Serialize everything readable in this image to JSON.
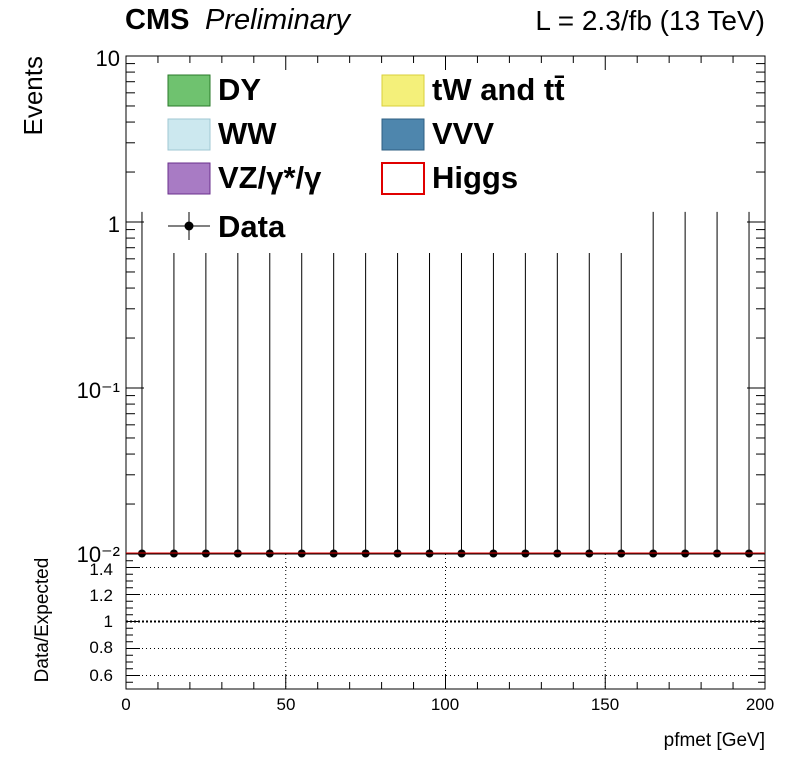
{
  "header": {
    "experiment": "CMS",
    "status": "Preliminary",
    "luminosity": "L = 2.3/fb (13 TeV)"
  },
  "legend": {
    "placement": "top",
    "entries": [
      {
        "label": "DY",
        "style": "fill",
        "color": "#3fae3f"
      },
      {
        "label": "tW and tt̄",
        "style": "fill",
        "color": "#f4f07a"
      },
      {
        "label": "WW",
        "style": "fill",
        "color": "#cce8ef"
      },
      {
        "label": "VVV",
        "style": "fill",
        "color": "#4e86ad"
      },
      {
        "label": "VZ/γ*/γ",
        "style": "fill",
        "color": "#8b4fb0"
      },
      {
        "label": "Higgs",
        "style": "line",
        "color": "#e00000"
      },
      {
        "label": "Data",
        "style": "marker",
        "color": "#000000"
      }
    ]
  },
  "chart_data": [
    {
      "type": "scatter",
      "panel": "main",
      "ylabel": "Events",
      "yscale": "log",
      "ylim": [
        0.01,
        10
      ],
      "yticks": [
        "10⁻²",
        "10⁻¹",
        "1",
        "10"
      ],
      "xlim": [
        0,
        200
      ],
      "series": [
        {
          "name": "Data",
          "x": [
            5,
            15,
            25,
            35,
            45,
            55,
            65,
            75,
            85,
            95,
            105,
            115,
            125,
            135,
            145,
            155,
            165,
            175,
            185,
            195
          ],
          "y": [
            0,
            0,
            0,
            0,
            0,
            0,
            0,
            0,
            0,
            0,
            0,
            0,
            0,
            0,
            0,
            0,
            0,
            0,
            0,
            0
          ],
          "yerr_up": [
            1.15,
            0.65,
            0.65,
            0.65,
            0.65,
            0.65,
            0.65,
            0.65,
            0.65,
            0.65,
            0.65,
            0.65,
            0.65,
            0.65,
            0.65,
            0.65,
            1.15,
            1.15,
            1.15,
            1.15
          ]
        }
      ]
    },
    {
      "type": "line",
      "panel": "ratio",
      "xlabel": "pfmet [GeV]",
      "ylabel": "Data/Expected",
      "xlim": [
        0,
        200
      ],
      "ylim": [
        0.5,
        1.5
      ],
      "xticks": [
        0,
        50,
        100,
        150,
        200
      ],
      "yticks": [
        "0.6",
        "0.8",
        "1",
        "1.2",
        "1.4"
      ],
      "grid": true,
      "reference_line": 1
    }
  ],
  "colors": {
    "axis": "#000000",
    "higgs_line": "#e00000",
    "grid": "#000000"
  }
}
